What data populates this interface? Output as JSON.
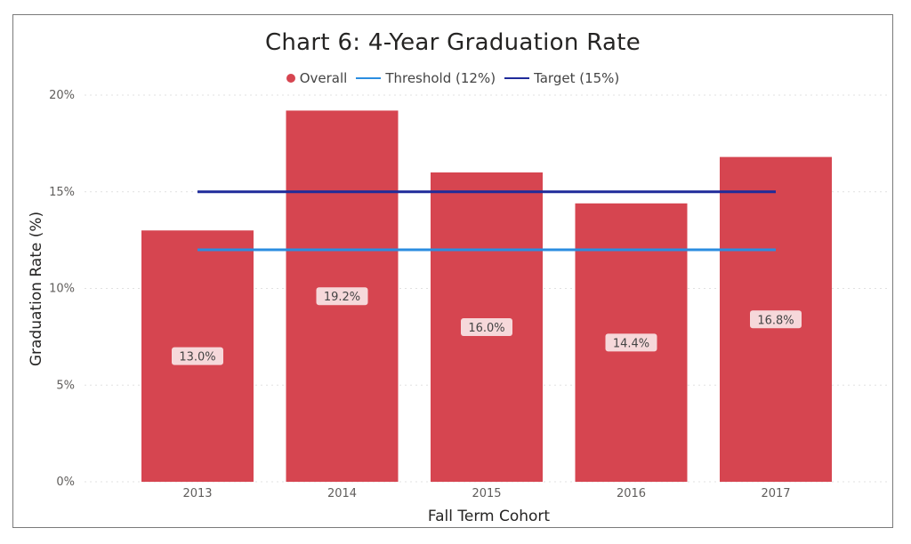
{
  "chart_data": {
    "type": "bar",
    "title": "Chart 6: 4-Year Graduation Rate",
    "xlabel": "Fall Term Cohort",
    "ylabel": "Graduation Rate (%)",
    "categories": [
      "2013",
      "2014",
      "2015",
      "2016",
      "2017"
    ],
    "series": [
      {
        "name": "Overall",
        "kind": "bar",
        "values": [
          13.0,
          19.2,
          16.0,
          14.4,
          16.8
        ],
        "labels": [
          "13.0%",
          "19.2%",
          "16.0%",
          "14.4%",
          "16.8%"
        ],
        "color": "#d64550"
      },
      {
        "name": "Threshold (12%)",
        "kind": "line",
        "values": [
          12,
          12,
          12,
          12,
          12
        ],
        "color": "#2b8de0"
      },
      {
        "name": "Target (15%)",
        "kind": "line",
        "values": [
          15,
          15,
          15,
          15,
          15
        ],
        "color": "#1f2b9a"
      }
    ],
    "ylim": [
      0,
      20
    ],
    "yticks": [
      0,
      5,
      10,
      15,
      20
    ],
    "ytick_labels": [
      "0%",
      "5%",
      "10%",
      "15%",
      "20%"
    ],
    "grid": true,
    "legend_position": "top-center"
  },
  "legend": {
    "overall": "Overall",
    "threshold": "Threshold (12%)",
    "target": "Target (15%)"
  },
  "colors": {
    "bar": "#d64550",
    "threshold": "#2b8de0",
    "target": "#1f2b9a",
    "label_bg": "#f6d8da"
  }
}
